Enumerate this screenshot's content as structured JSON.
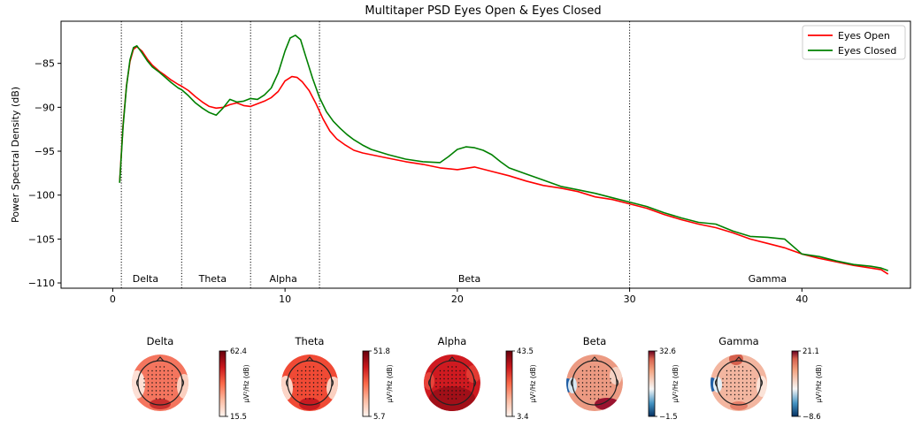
{
  "chart_data": [
    {
      "type": "line",
      "title": "Multitaper PSD Eyes Open & Eyes Closed",
      "xlabel": "",
      "ylabel": "Power Spectral Density (dB)",
      "xlim": [
        -3,
        46.3
      ],
      "ylim": [
        -110.6,
        -80.2
      ],
      "xticks": [
        0,
        10,
        20,
        30,
        40
      ],
      "yticks": [
        -85,
        -90,
        -95,
        -100,
        -105,
        -110
      ],
      "grid": false,
      "legend_position": "top-right",
      "band_boundaries": [
        0.5,
        4,
        8,
        12,
        30
      ],
      "bands": [
        {
          "name": "Delta",
          "x": 1.9
        },
        {
          "name": "Theta",
          "x": 5.8
        },
        {
          "name": "Alpha",
          "x": 9.9
        },
        {
          "name": "Beta",
          "x": 20.7
        },
        {
          "name": "Gamma",
          "x": 38.0
        }
      ],
      "series": [
        {
          "name": "Eyes Open",
          "color": "#ff0000",
          "x": [
            0.4,
            0.6,
            0.8,
            1.0,
            1.2,
            1.4,
            1.7,
            2.0,
            2.3,
            2.7,
            3.0,
            3.4,
            3.8,
            4.0,
            4.4,
            4.8,
            5.2,
            5.6,
            6.0,
            6.4,
            6.8,
            7.2,
            7.6,
            8.0,
            8.4,
            8.8,
            9.2,
            9.6,
            10.0,
            10.4,
            10.7,
            11.0,
            11.4,
            11.8,
            12.2,
            12.6,
            13.0,
            13.5,
            14.0,
            14.5,
            15.0,
            16.0,
            17.0,
            18.0,
            19.0,
            20.0,
            21.0,
            22.0,
            23.0,
            24.0,
            25.0,
            26.0,
            27.0,
            28.0,
            29.0,
            30.0,
            31.0,
            32.0,
            33.0,
            34.0,
            35.0,
            36.0,
            37.0,
            38.0,
            39.0,
            40.0,
            41.0,
            42.0,
            43.0,
            44.0,
            44.6,
            45.0
          ],
          "values": [
            -98.5,
            -92.0,
            -87.5,
            -84.8,
            -83.4,
            -83.1,
            -83.6,
            -84.5,
            -85.2,
            -85.9,
            -86.3,
            -86.9,
            -87.4,
            -87.6,
            -88.1,
            -88.8,
            -89.4,
            -89.9,
            -90.1,
            -90.0,
            -89.7,
            -89.5,
            -89.8,
            -89.9,
            -89.6,
            -89.3,
            -88.9,
            -88.2,
            -87.0,
            -86.5,
            -86.6,
            -87.1,
            -88.1,
            -89.6,
            -91.3,
            -92.7,
            -93.6,
            -94.3,
            -94.9,
            -95.2,
            -95.4,
            -95.8,
            -96.2,
            -96.5,
            -96.9,
            -97.1,
            -96.8,
            -97.3,
            -97.8,
            -98.4,
            -98.9,
            -99.2,
            -99.6,
            -100.2,
            -100.5,
            -101.0,
            -101.5,
            -102.2,
            -102.8,
            -103.3,
            -103.7,
            -104.3,
            -105.0,
            -105.5,
            -106.0,
            -106.7,
            -107.2,
            -107.6,
            -108.0,
            -108.3,
            -108.5,
            -109.0
          ]
        },
        {
          "name": "Eyes Closed",
          "color": "#008000",
          "x": [
            0.4,
            0.6,
            0.8,
            1.0,
            1.2,
            1.4,
            1.7,
            2.0,
            2.3,
            2.7,
            3.0,
            3.4,
            3.8,
            4.0,
            4.4,
            4.8,
            5.2,
            5.6,
            6.0,
            6.4,
            6.8,
            7.2,
            7.6,
            8.0,
            8.4,
            8.8,
            9.2,
            9.6,
            10.0,
            10.3,
            10.6,
            10.9,
            11.2,
            11.6,
            12.0,
            12.4,
            12.8,
            13.2,
            13.6,
            14.0,
            14.5,
            15.0,
            16.0,
            17.0,
            18.0,
            19.0,
            19.5,
            20.0,
            20.5,
            21.0,
            21.5,
            22.0,
            22.5,
            23.0,
            24.0,
            25.0,
            26.0,
            27.0,
            28.0,
            29.0,
            30.0,
            31.0,
            32.0,
            33.0,
            34.0,
            35.0,
            36.0,
            37.0,
            38.0,
            39.0,
            40.0,
            41.0,
            42.0,
            43.0,
            44.0,
            44.6,
            45.0
          ],
          "values": [
            -98.6,
            -92.2,
            -87.6,
            -84.6,
            -83.2,
            -83.0,
            -83.8,
            -84.7,
            -85.4,
            -86.0,
            -86.5,
            -87.2,
            -87.8,
            -88.0,
            -88.7,
            -89.5,
            -90.1,
            -90.6,
            -90.9,
            -90.1,
            -89.1,
            -89.4,
            -89.3,
            -89.0,
            -89.1,
            -88.6,
            -87.8,
            -86.1,
            -83.6,
            -82.1,
            -81.8,
            -82.3,
            -84.2,
            -86.7,
            -88.9,
            -90.5,
            -91.6,
            -92.4,
            -93.1,
            -93.7,
            -94.3,
            -94.8,
            -95.4,
            -95.9,
            -96.2,
            -96.3,
            -95.6,
            -94.8,
            -94.5,
            -94.6,
            -94.9,
            -95.4,
            -96.2,
            -96.9,
            -97.6,
            -98.3,
            -99.0,
            -99.4,
            -99.8,
            -100.3,
            -100.8,
            -101.3,
            -102.0,
            -102.6,
            -103.1,
            -103.3,
            -104.1,
            -104.7,
            -104.8,
            -105.0,
            -106.7,
            -107.0,
            -107.5,
            -107.9,
            -108.1,
            -108.3,
            -108.6
          ]
        }
      ]
    },
    {
      "type": "heatmap",
      "panels": [
        {
          "title": "Delta",
          "cb_max": "62.4",
          "cb_min": "15.5",
          "colormap": "reds",
          "base_color": "#f4755e"
        },
        {
          "title": "Theta",
          "cb_max": "51.8",
          "cb_min": "5.7",
          "colormap": "reds",
          "base_color": "#f04a35"
        },
        {
          "title": "Alpha",
          "cb_max": "43.5",
          "cb_min": "3.4",
          "colormap": "reds",
          "base_color": "#cf1a20"
        },
        {
          "title": "Beta",
          "cb_max": "32.6",
          "cb_min": "-1.5",
          "colormap": "rdbu_r",
          "base_color": "#ec9a82"
        },
        {
          "title": "Gamma",
          "cb_max": "21.1",
          "cb_min": "-8.6",
          "colormap": "rdbu_r",
          "base_color": "#f3b6a0"
        }
      ],
      "colorbar_unit": "µV²/Hz (dB)"
    }
  ]
}
